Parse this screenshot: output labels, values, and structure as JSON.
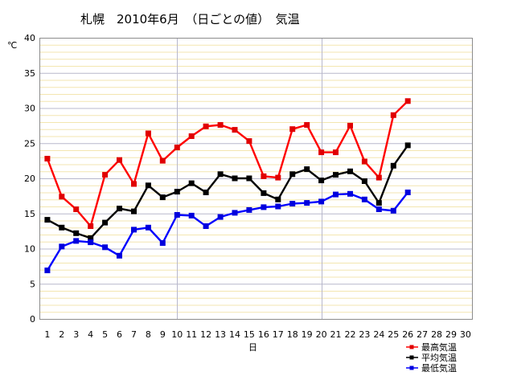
{
  "chart_data": {
    "type": "line",
    "title": "札幌　2010年6月　（日ごとの値）　気温",
    "ylabel": "℃",
    "xlabel": "日",
    "ylim": [
      0,
      40
    ],
    "y_ticks": [
      0,
      5,
      10,
      15,
      20,
      25,
      30,
      35,
      40
    ],
    "xlim": [
      1,
      30
    ],
    "x_ticks": [
      1,
      2,
      3,
      4,
      5,
      6,
      7,
      8,
      9,
      10,
      11,
      12,
      13,
      14,
      15,
      16,
      17,
      18,
      19,
      20,
      21,
      22,
      23,
      24,
      25,
      26,
      27,
      28,
      29,
      30
    ],
    "grid": true,
    "legend_position": "bottom-right",
    "x": [
      1,
      2,
      3,
      4,
      5,
      6,
      7,
      8,
      9,
      10,
      11,
      12,
      13,
      14,
      15,
      16,
      17,
      18,
      19,
      20,
      21,
      22,
      23,
      24,
      25,
      26
    ],
    "series": [
      {
        "name": "最高気温",
        "color": "#ff0000",
        "marker_color": "#e00000",
        "values": [
          22.8,
          17.4,
          15.6,
          13.2,
          20.5,
          22.6,
          19.2,
          26.4,
          22.5,
          24.4,
          26.0,
          27.4,
          27.6,
          26.9,
          25.3,
          20.3,
          20.1,
          27.0,
          27.6,
          23.7,
          23.7,
          27.5,
          22.4,
          20.1,
          29.0,
          31.0
        ]
      },
      {
        "name": "平均気温",
        "color": "#000000",
        "marker_color": "#000000",
        "values": [
          14.1,
          13.0,
          12.2,
          11.5,
          13.7,
          15.7,
          15.3,
          19.0,
          17.3,
          18.1,
          19.3,
          18.0,
          20.6,
          20.0,
          20.0,
          17.9,
          17.0,
          20.6,
          21.3,
          19.7,
          20.5,
          21.0,
          19.6,
          16.5,
          21.8,
          24.7
        ]
      },
      {
        "name": "最低気温",
        "color": "#0000ff",
        "marker_color": "#0000dd",
        "values": [
          6.9,
          10.3,
          11.1,
          10.9,
          10.2,
          9.0,
          12.7,
          13.0,
          10.8,
          14.8,
          14.7,
          13.2,
          14.5,
          15.1,
          15.5,
          15.9,
          16.0,
          16.4,
          16.5,
          16.7,
          17.7,
          17.8,
          17.0,
          15.6,
          15.4,
          18.0
        ]
      }
    ]
  }
}
